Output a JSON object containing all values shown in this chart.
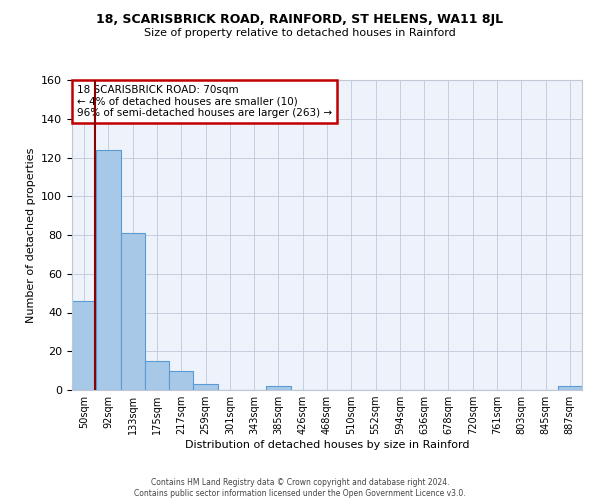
{
  "title": "18, SCARISBRICK ROAD, RAINFORD, ST HELENS, WA11 8JL",
  "subtitle": "Size of property relative to detached houses in Rainford",
  "xlabel": "Distribution of detached houses by size in Rainford",
  "ylabel": "Number of detached properties",
  "bins": [
    "50sqm",
    "92sqm",
    "133sqm",
    "175sqm",
    "217sqm",
    "259sqm",
    "301sqm",
    "343sqm",
    "385sqm",
    "426sqm",
    "468sqm",
    "510sqm",
    "552sqm",
    "594sqm",
    "636sqm",
    "678sqm",
    "720sqm",
    "761sqm",
    "803sqm",
    "845sqm",
    "887sqm"
  ],
  "values": [
    46,
    124,
    81,
    15,
    10,
    3,
    0,
    0,
    2,
    0,
    0,
    0,
    0,
    0,
    0,
    0,
    0,
    0,
    0,
    0,
    2
  ],
  "bar_color": "#a8c8e8",
  "bar_edge_color": "#5b9bd5",
  "ylim": [
    0,
    160
  ],
  "yticks": [
    0,
    20,
    40,
    60,
    80,
    100,
    120,
    140,
    160
  ],
  "vline_x": 0.46,
  "vline_color": "#8b0000",
  "annotation_title": "18 SCARISBRICK ROAD: 70sqm",
  "annotation_line1": "← 4% of detached houses are smaller (10)",
  "annotation_line2": "96% of semi-detached houses are larger (263) →",
  "annotation_box_color": "#ffffff",
  "annotation_box_edge": "#c00000",
  "footer1": "Contains HM Land Registry data © Crown copyright and database right 2024.",
  "footer2": "Contains public sector information licensed under the Open Government Licence v3.0.",
  "bg_color": "#eef2fa",
  "fig_bg_color": "#ffffff"
}
